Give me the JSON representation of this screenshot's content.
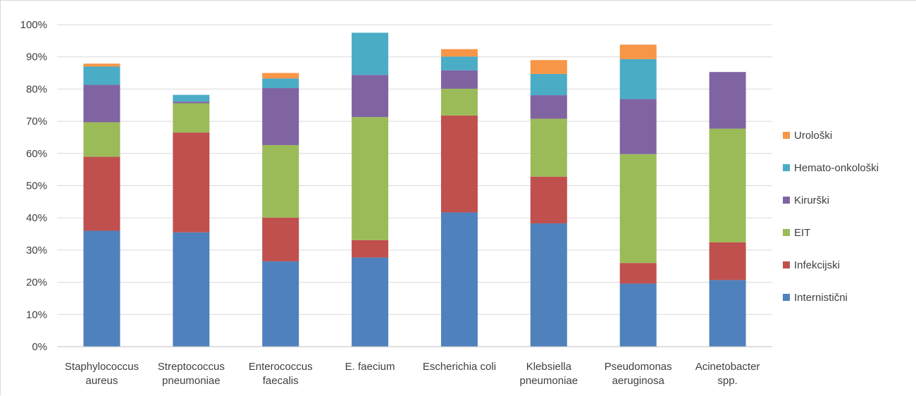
{
  "chart_data": {
    "type": "bar",
    "stacked": true,
    "title": "",
    "xlabel": "",
    "ylabel": "",
    "ylim": [
      0,
      100
    ],
    "yticks": [
      "0%",
      "10%",
      "20%",
      "30%",
      "40%",
      "50%",
      "60%",
      "70%",
      "80%",
      "90%",
      "100%"
    ],
    "ytick_values": [
      0,
      10,
      20,
      30,
      40,
      50,
      60,
      70,
      80,
      90,
      100
    ],
    "grid": true,
    "legend_position": "right",
    "categories": [
      [
        "Staphylococcus",
        "aureus"
      ],
      [
        "Streptococcus",
        "pneumoniae"
      ],
      [
        "Enterococcus",
        "faecalis"
      ],
      [
        "E. faecium"
      ],
      [
        "Escherichia coli"
      ],
      [
        "Klebsiella",
        "pneumoniae"
      ],
      [
        "Pseudomonas",
        "aeruginosa"
      ],
      [
        "Acinetobacter",
        "spp."
      ]
    ],
    "series": [
      {
        "name": "Internistični",
        "color": "#4f81bd",
        "values": [
          36,
          35.5,
          26.5,
          27.7,
          41.7,
          38.3,
          19.6,
          20.7
        ]
      },
      {
        "name": "Infekcijski",
        "color": "#c0504d",
        "values": [
          23,
          31,
          13.6,
          5.4,
          30.1,
          14.5,
          6.4,
          11.7
        ]
      },
      {
        "name": "EIT",
        "color": "#9bbb59",
        "values": [
          10.7,
          9.1,
          22.5,
          38.2,
          8.3,
          18,
          33.8,
          35.3
        ]
      },
      {
        "name": "Kirurški",
        "color": "#8064a2",
        "values": [
          11.6,
          0.5,
          17.7,
          13.1,
          5.7,
          7.3,
          17.1,
          17.6
        ]
      },
      {
        "name": "Hemato-onkološki",
        "color": "#4bacc6",
        "values": [
          5.7,
          2.1,
          3,
          13.1,
          4.3,
          6.6,
          12.4,
          0
        ]
      },
      {
        "name": "Urološki",
        "color": "#f79646",
        "values": [
          0.9,
          0,
          1.7,
          0,
          2.3,
          4.3,
          4.5,
          0
        ]
      }
    ]
  }
}
